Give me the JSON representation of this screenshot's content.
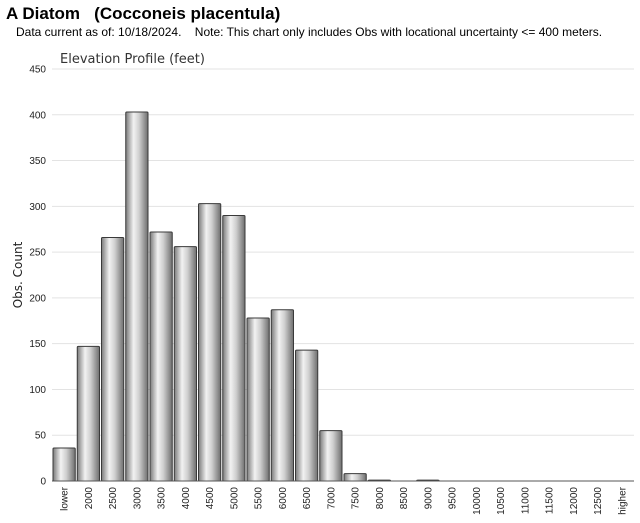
{
  "header": {
    "title": "A Diatom   (Cocconeis placentula)",
    "note": "Data current as of: 10/18/2024.    Note: This chart only includes Obs with locational uncertainty <= 400 meters."
  },
  "chart_data": {
    "type": "bar",
    "title": "Elevation Profile (feet)",
    "xlabel": "",
    "ylabel": "Obs. Count",
    "ylim": [
      0,
      450
    ],
    "yticks": [
      0,
      50,
      100,
      150,
      200,
      250,
      300,
      350,
      400,
      450
    ],
    "grid": true,
    "legend": "none",
    "bar_color": "#b8b8b8",
    "categories": [
      "lower",
      "2000",
      "2500",
      "3000",
      "3500",
      "4000",
      "4500",
      "5000",
      "5500",
      "6000",
      "6500",
      "7000",
      "7500",
      "8000",
      "8500",
      "9000",
      "9500",
      "10000",
      "10500",
      "11000",
      "11500",
      "12000",
      "12500",
      "higher"
    ],
    "values": [
      36,
      147,
      266,
      403,
      272,
      256,
      303,
      290,
      178,
      187,
      143,
      55,
      8,
      1,
      0,
      1,
      0,
      0,
      0,
      0,
      0,
      0,
      0,
      0
    ]
  }
}
